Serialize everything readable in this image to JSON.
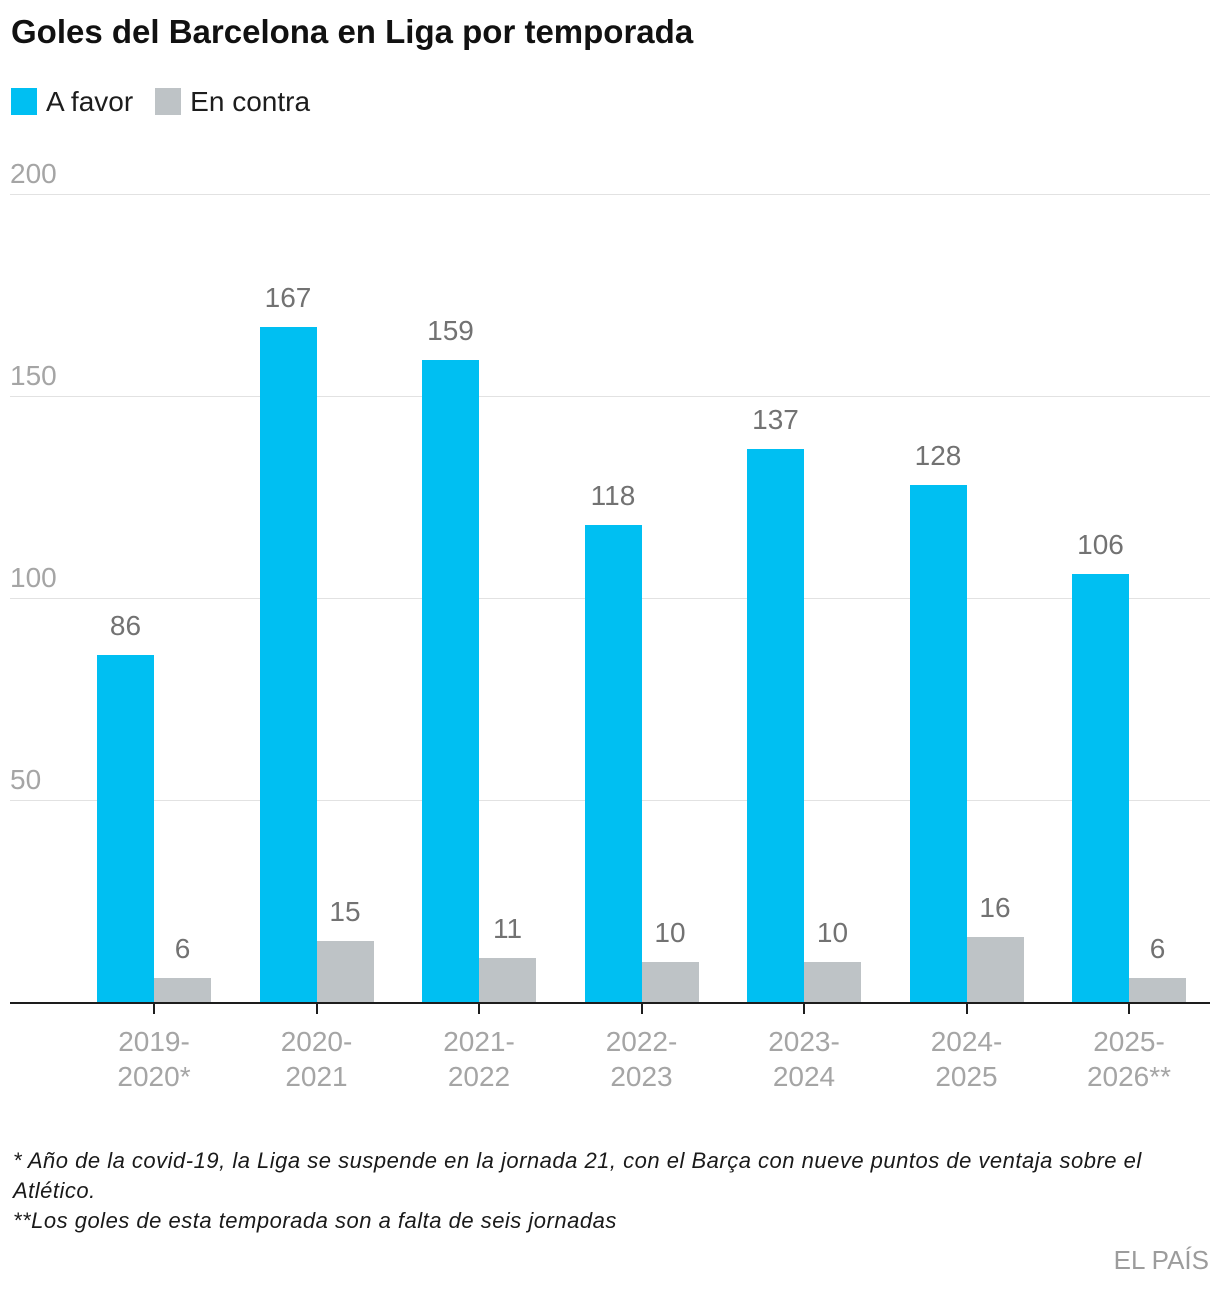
{
  "title": "Goles del Barcelona en Liga por temporada",
  "legend": {
    "items": [
      {
        "label": "A favor",
        "color": "#00bff2"
      },
      {
        "label": "En contra",
        "color": "#bec3c6"
      }
    ]
  },
  "footnotes": [
    "* Año de la covid-19, la Liga se suspende en la jornada 21, con el Barça con nueve puntos de ventaja sobre el Atlético.",
    "**Los goles de esta temporada son a falta de seis jornadas"
  ],
  "source": "EL PAÍS",
  "colors": {
    "a_favor": "#00bff2",
    "en_contra": "#bec3c6",
    "gridline": "#e2e2e2",
    "axis": "#1d1d1d",
    "tick_label": "#a5a5a5",
    "value_label": "#727272",
    "title": "#111111",
    "footnote": "#1a1a1a",
    "source": "#9c9c9c",
    "background": "#ffffff"
  },
  "chart_data": {
    "type": "bar",
    "title": "Goles del Barcelona en Liga por temporada",
    "categories": [
      "2019-\n2020*",
      "2020-\n2021",
      "2021-\n2022",
      "2022-\n2023",
      "2023-\n2024",
      "2024-\n2025",
      "2025-\n2026**"
    ],
    "series": [
      {
        "name": "A favor",
        "color": "#00bff2",
        "values": [
          86,
          167,
          159,
          118,
          137,
          128,
          106
        ]
      },
      {
        "name": "En contra",
        "color": "#bec3c6",
        "values": [
          6,
          15,
          11,
          10,
          10,
          16,
          6
        ]
      }
    ],
    "xlabel": "",
    "ylabel": "",
    "yticks": [
      50,
      100,
      150,
      200
    ],
    "ylim": [
      0,
      200
    ],
    "grid": true,
    "legend_position": "top-left",
    "value_labels": true
  }
}
